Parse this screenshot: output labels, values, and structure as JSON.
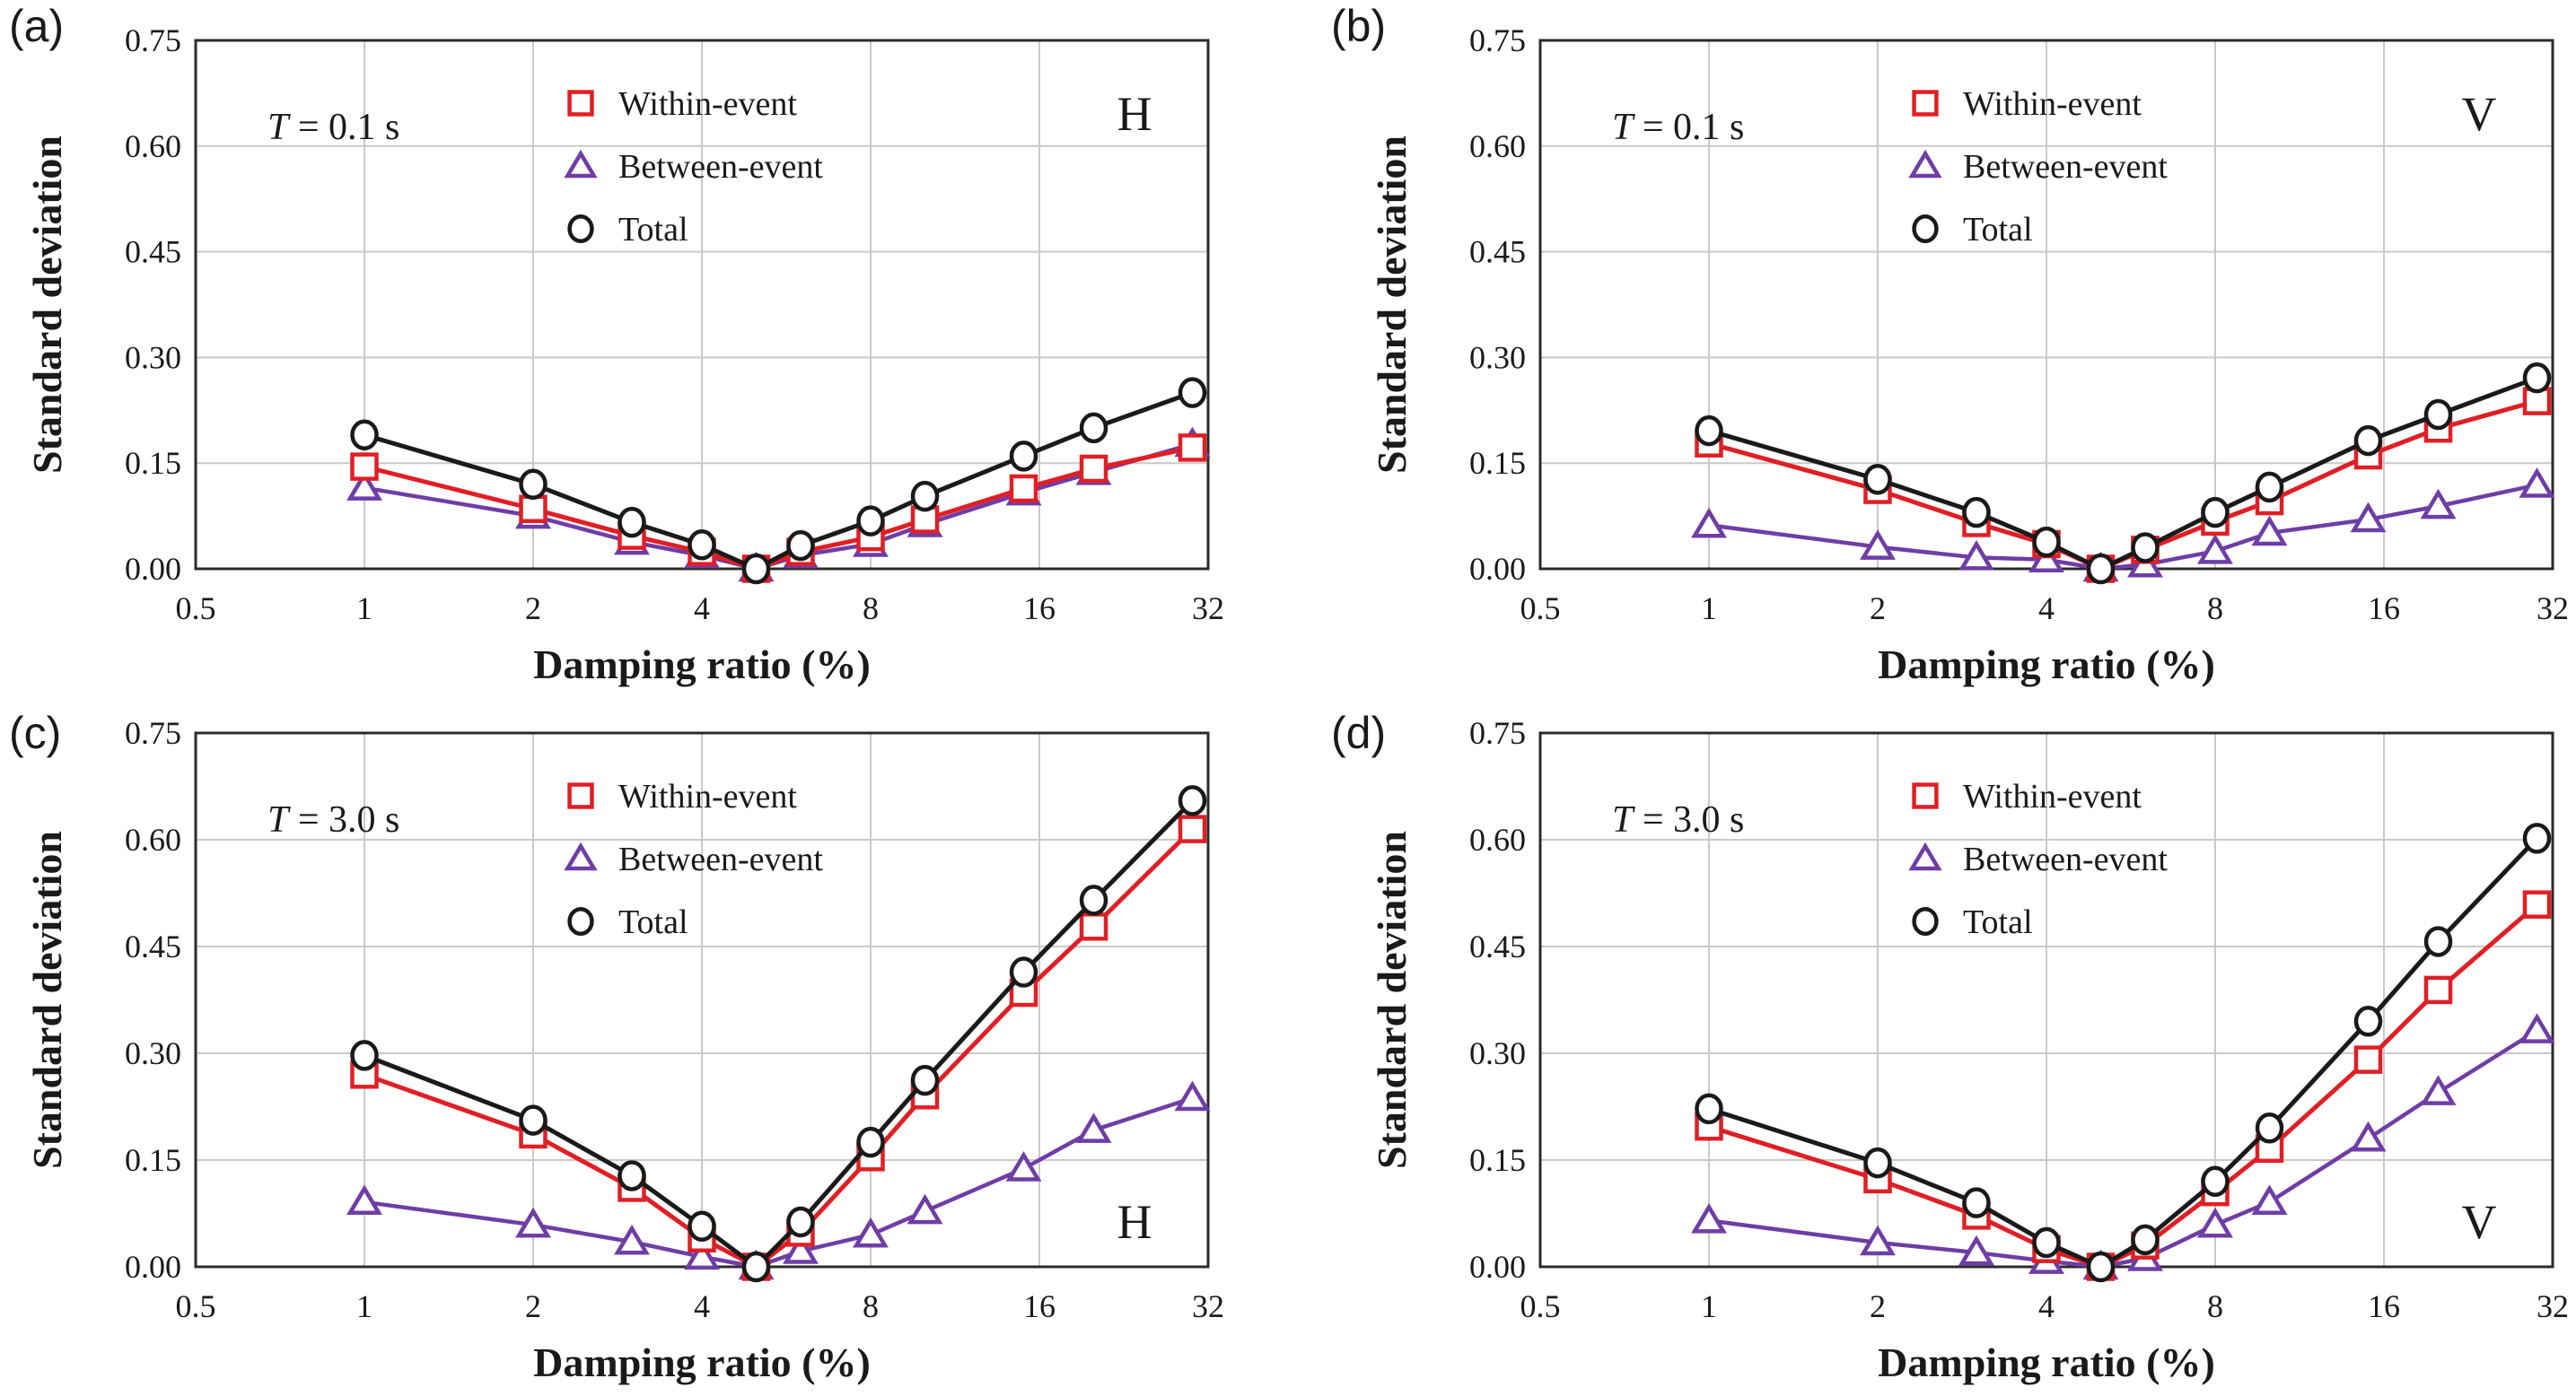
{
  "figure": {
    "background": "#ffffff",
    "grid_color": "#c9c9c9",
    "frame_color": "#2b2b2b",
    "text_color": "#1a1a1a"
  },
  "chart_data": [
    {
      "panel_label": "(a)",
      "period_label": "T = 0.1 s",
      "component": "H",
      "component_pos": "top-right",
      "type": "line",
      "xlabel": "Damping ratio (%)",
      "ylabel": "Standard deviation",
      "xscale": "log2",
      "xlim": [
        0.5,
        32
      ],
      "ylim": [
        0,
        0.75
      ],
      "grid": true,
      "legend_position": "top-center",
      "x": [
        1,
        2,
        3,
        4,
        5,
        6,
        8,
        10,
        15,
        20,
        30
      ],
      "xticks": [
        0.5,
        1,
        2,
        4,
        8,
        16,
        32
      ],
      "xtick_labels": [
        "0.5",
        "1",
        "2",
        "4",
        "8",
        "16",
        "32"
      ],
      "yticks": [
        0,
        0.15,
        0.3,
        0.45,
        0.6,
        0.75
      ],
      "ytick_labels": [
        "0.00",
        "0.15",
        "0.30",
        "0.45",
        "0.60",
        "0.75"
      ],
      "series": [
        {
          "name": "Within-event",
          "marker": "square",
          "color": "#e01f25",
          "values": [
            0.145,
            0.085,
            0.047,
            0.024,
            0.0,
            0.024,
            0.045,
            0.07,
            0.114,
            0.142,
            0.172
          ]
        },
        {
          "name": "Between-event",
          "marker": "triangle",
          "color": "#6f3da6",
          "values": [
            0.115,
            0.075,
            0.038,
            0.019,
            0.0,
            0.019,
            0.035,
            0.063,
            0.108,
            0.137,
            0.177
          ]
        },
        {
          "name": "Total",
          "marker": "circle",
          "color": "#1a1a1a",
          "values": [
            0.19,
            0.12,
            0.066,
            0.034,
            0.0,
            0.033,
            0.068,
            0.103,
            0.16,
            0.2,
            0.25
          ]
        }
      ]
    },
    {
      "panel_label": "(b)",
      "period_label": "T = 0.1 s",
      "component": "V",
      "component_pos": "top-right",
      "type": "line",
      "xlabel": "Damping ratio (%)",
      "ylabel": "Standard deviation",
      "xscale": "log2",
      "xlim": [
        0.5,
        32
      ],
      "ylim": [
        0,
        0.75
      ],
      "grid": true,
      "legend_position": "top-center",
      "x": [
        1,
        2,
        3,
        4,
        5,
        6,
        8,
        10,
        15,
        20,
        30
      ],
      "xticks": [
        0.5,
        1,
        2,
        4,
        8,
        16,
        32
      ],
      "xtick_labels": [
        "0.5",
        "1",
        "2",
        "4",
        "8",
        "16",
        "32"
      ],
      "yticks": [
        0,
        0.15,
        0.3,
        0.45,
        0.6,
        0.75
      ],
      "ytick_labels": [
        "0.00",
        "0.15",
        "0.30",
        "0.45",
        "0.60",
        "0.75"
      ],
      "series": [
        {
          "name": "Within-event",
          "marker": "square",
          "color": "#e01f25",
          "values": [
            0.178,
            0.112,
            0.065,
            0.035,
            0.0,
            0.027,
            0.067,
            0.096,
            0.161,
            0.199,
            0.238
          ]
        },
        {
          "name": "Between-event",
          "marker": "triangle",
          "color": "#6f3da6",
          "values": [
            0.062,
            0.031,
            0.016,
            0.013,
            0.0,
            0.006,
            0.025,
            0.051,
            0.07,
            0.089,
            0.119
          ]
        },
        {
          "name": "Total",
          "marker": "circle",
          "color": "#1a1a1a",
          "values": [
            0.196,
            0.127,
            0.08,
            0.038,
            0.0,
            0.03,
            0.08,
            0.116,
            0.182,
            0.219,
            0.271
          ]
        }
      ]
    },
    {
      "panel_label": "(c)",
      "period_label": "T = 3.0 s",
      "component": "H",
      "component_pos": "bottom-right",
      "type": "line",
      "xlabel": "Damping ratio (%)",
      "ylabel": "Standard deviation",
      "xscale": "log2",
      "xlim": [
        0.5,
        32
      ],
      "ylim": [
        0,
        0.75
      ],
      "grid": true,
      "legend_position": "top-center",
      "x": [
        1,
        2,
        3,
        4,
        5,
        6,
        8,
        10,
        15,
        20,
        30
      ],
      "xticks": [
        0.5,
        1,
        2,
        4,
        8,
        16,
        32
      ],
      "xtick_labels": [
        "0.5",
        "1",
        "2",
        "4",
        "8",
        "16",
        "32"
      ],
      "yticks": [
        0,
        0.15,
        0.3,
        0.45,
        0.6,
        0.75
      ],
      "ytick_labels": [
        "0.00",
        "0.15",
        "0.30",
        "0.45",
        "0.60",
        "0.75"
      ],
      "series": [
        {
          "name": "Within-event",
          "marker": "square",
          "color": "#e01f25",
          "values": [
            0.27,
            0.186,
            0.111,
            0.04,
            0.0,
            0.048,
            0.154,
            0.241,
            0.385,
            0.478,
            0.615
          ]
        },
        {
          "name": "Between-event",
          "marker": "triangle",
          "color": "#6f3da6",
          "values": [
            0.091,
            0.059,
            0.035,
            0.014,
            0.0,
            0.022,
            0.045,
            0.078,
            0.138,
            0.192,
            0.237
          ]
        },
        {
          "name": "Total",
          "marker": "circle",
          "color": "#1a1a1a",
          "values": [
            0.297,
            0.206,
            0.128,
            0.057,
            0.0,
            0.063,
            0.175,
            0.262,
            0.414,
            0.515,
            0.655
          ]
        }
      ]
    },
    {
      "panel_label": "(d)",
      "period_label": "T = 3.0 s",
      "component": "V",
      "component_pos": "bottom-right",
      "type": "line",
      "xlabel": "Damping ratio (%)",
      "ylabel": "Standard deviation",
      "xscale": "log2",
      "xlim": [
        0.5,
        32
      ],
      "ylim": [
        0,
        0.75
      ],
      "grid": true,
      "legend_position": "top-center",
      "x": [
        1,
        2,
        3,
        4,
        5,
        6,
        8,
        10,
        15,
        20,
        30
      ],
      "xticks": [
        0.5,
        1,
        2,
        4,
        8,
        16,
        32
      ],
      "xtick_labels": [
        "0.5",
        "1",
        "2",
        "4",
        "8",
        "16",
        "32"
      ],
      "yticks": [
        0,
        0.15,
        0.3,
        0.45,
        0.6,
        0.75
      ],
      "ytick_labels": [
        "0.00",
        "0.15",
        "0.30",
        "0.45",
        "0.60",
        "0.75"
      ],
      "series": [
        {
          "name": "Within-event",
          "marker": "square",
          "color": "#e01f25",
          "values": [
            0.197,
            0.123,
            0.072,
            0.025,
            0.0,
            0.03,
            0.105,
            0.166,
            0.291,
            0.389,
            0.509
          ]
        },
        {
          "name": "Between-event",
          "marker": "triangle",
          "color": "#6f3da6",
          "values": [
            0.065,
            0.034,
            0.02,
            0.008,
            0.0,
            0.012,
            0.059,
            0.091,
            0.18,
            0.245,
            0.332
          ]
        },
        {
          "name": "Total",
          "marker": "circle",
          "color": "#1a1a1a",
          "values": [
            0.222,
            0.146,
            0.09,
            0.034,
            0.0,
            0.038,
            0.12,
            0.195,
            0.345,
            0.457,
            0.602
          ]
        }
      ]
    }
  ]
}
